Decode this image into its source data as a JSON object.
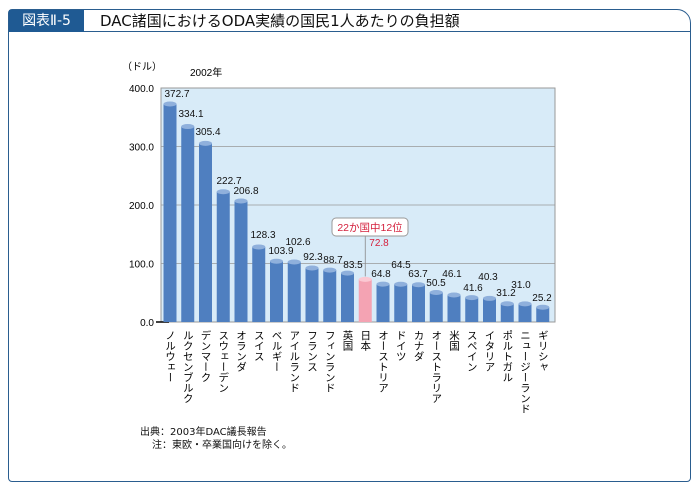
{
  "header": {
    "badge": "図表Ⅱ-5",
    "title": "DAC諸国におけるODA実績の国民1人あたりの負担額"
  },
  "chart_data": {
    "type": "bar",
    "title": "DAC諸国におけるODA実績の国民1人あたりの負担額",
    "subtitle": "2002年",
    "ylabel": "（ドル）",
    "ylim": [
      0,
      400
    ],
    "yticks": [
      "0.0",
      "100.0",
      "200.0",
      "300.0",
      "400.0"
    ],
    "grid": true,
    "categories": [
      "ノルウェー",
      "ルクセンブルク",
      "デンマーク",
      "スウェーデン",
      "オランダ",
      "スイス",
      "ベルギー",
      "アイルランド",
      "フランス",
      "フィンランド",
      "英国",
      "日本",
      "オーストリア",
      "ドイツ",
      "カナダ",
      "オーストラリア",
      "米国",
      "スペイン",
      "イタリア",
      "ポルトガル",
      "ニュージーランド",
      "ギリシャ"
    ],
    "values": [
      372.7,
      334.1,
      305.4,
      222.7,
      206.8,
      128.3,
      103.9,
      102.6,
      92.3,
      88.7,
      83.5,
      72.8,
      64.8,
      64.5,
      63.7,
      50.5,
      46.1,
      41.6,
      40.3,
      31.2,
      31.0,
      25.2
    ],
    "value_labels": [
      "372.7",
      "334.1",
      "305.4",
      "222.7",
      "206.8",
      "128.3",
      "103.9",
      "102.6",
      "92.3",
      "88.7",
      "83.5",
      "72.8",
      "64.8",
      "64.5",
      "63.7",
      "50.5",
      "46.1",
      "41.6",
      "40.3",
      "31.2",
      "31.0",
      "25.2"
    ],
    "highlight_index": 11,
    "annotation": "22か国中12位",
    "colors": {
      "bar": "#4f7fc0",
      "highlight": "#f4a3b3",
      "plot_bg": "#d8ebf8",
      "accent": "#d4213d"
    }
  },
  "footer": {
    "source": "出典：2003年DAC議長報告",
    "note": "注：東欧・卒業国向けを除く。"
  }
}
